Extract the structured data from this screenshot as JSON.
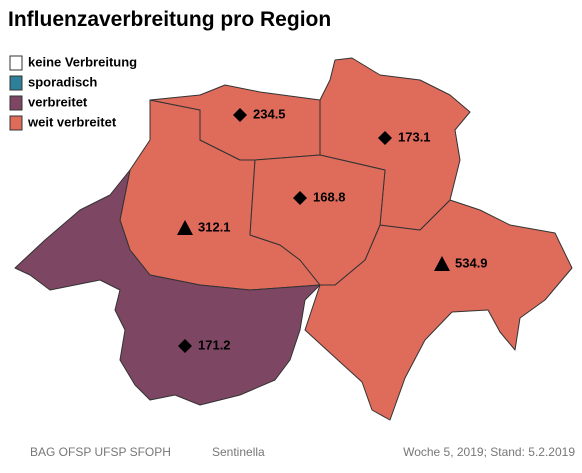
{
  "title": "Influenzaverbreitung pro Region",
  "legend": [
    {
      "label": "keine Verbreitung",
      "color": "#ffffff"
    },
    {
      "label": "sporadisch",
      "color": "#2e7f9a"
    },
    {
      "label": "verbreitet",
      "color": "#7d4763"
    },
    {
      "label": "weit verbreitet",
      "color": "#df6b5b"
    }
  ],
  "regions": [
    {
      "value": 234.5,
      "marker": "diamond"
    },
    {
      "value": 173.1,
      "marker": "diamond"
    },
    {
      "value": 168.8,
      "marker": "diamond"
    },
    {
      "value": 312.1,
      "marker": "triangle"
    },
    {
      "value": 534.9,
      "marker": "triangle"
    },
    {
      "value": 171.2,
      "marker": "diamond"
    }
  ],
  "footer": {
    "left": "BAG OFSP UFSP SFOPH",
    "center": "Sentinella",
    "right": "Woche 5, 2019; Stand: 5.2.2019"
  }
}
